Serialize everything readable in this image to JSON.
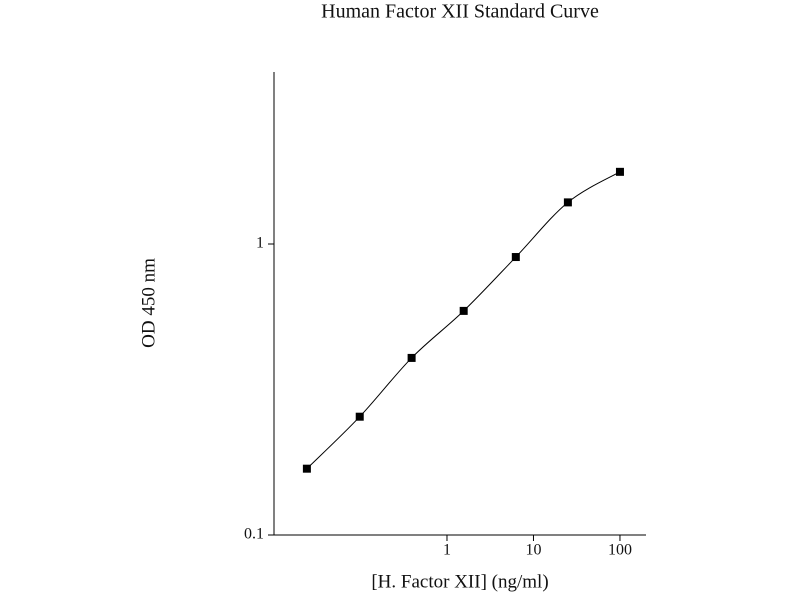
{
  "chart_data": {
    "type": "scatter",
    "title": "Human Factor XII Standard Curve",
    "xlabel": "[H. Factor XII] (ng/ml)",
    "ylabel": "OD 450 nm",
    "x": [
      0.024,
      0.098,
      0.39,
      1.56,
      6.25,
      25,
      100
    ],
    "y": [
      0.169,
      0.255,
      0.406,
      0.589,
      0.902,
      1.39,
      1.77
    ],
    "color": "#000000",
    "xscale": "log",
    "yscale": "log",
    "xlim": [
      0.01,
      200
    ],
    "ylim": [
      0.1,
      3.9
    ],
    "xticks": [
      1,
      10,
      100
    ],
    "yticks": [
      0.1,
      1
    ],
    "grid": false
  }
}
